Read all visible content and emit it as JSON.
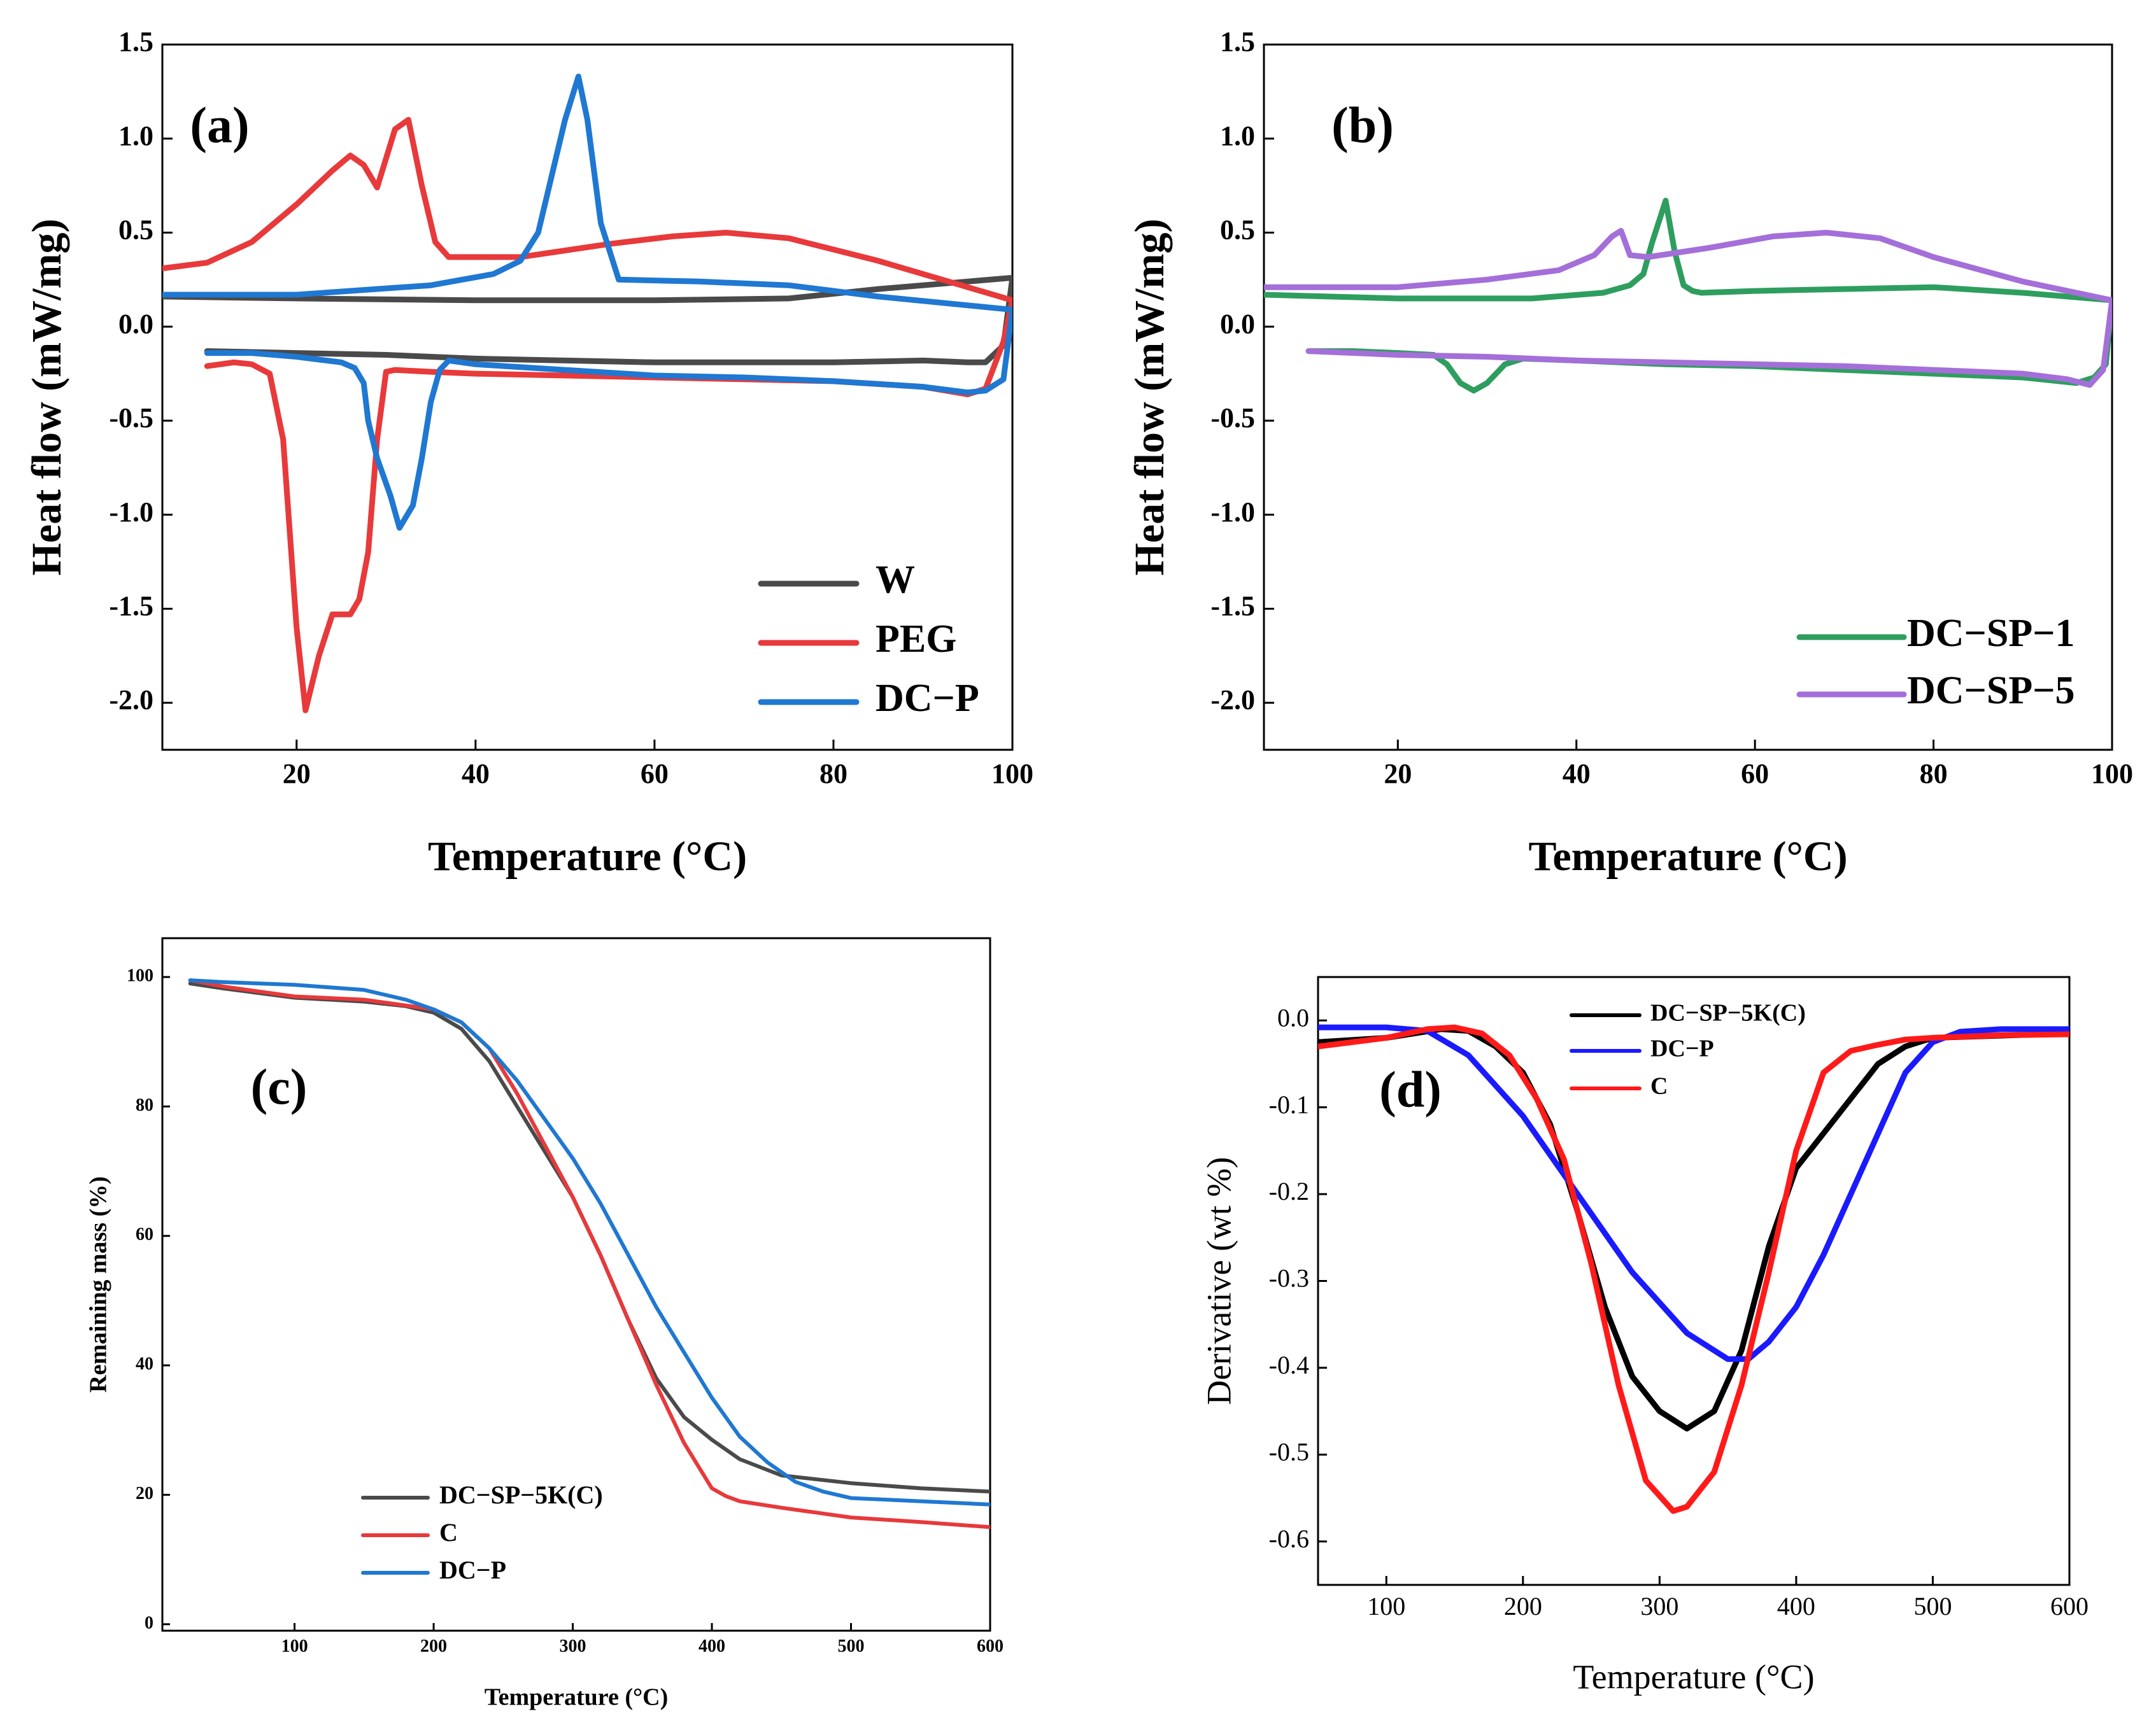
{
  "figure": {
    "panels_count": 4
  },
  "chart_data": [
    {
      "id": "a",
      "type": "line",
      "panel_label": "(a)",
      "xlabel": "Temperature (°C)",
      "ylabel": "Heat flow (mW/mg)",
      "xlim": [
        5,
        100
      ],
      "ylim": [
        -2.25,
        1.5
      ],
      "xticks": [
        20,
        40,
        60,
        80,
        100
      ],
      "yticks": [
        -2.0,
        -1.5,
        -1.0,
        -0.5,
        0.0,
        0.5,
        1.0,
        1.5
      ],
      "ytick_labels": [
        "-2.0",
        "-1.5",
        "-1.0",
        "-0.5",
        "0.0",
        "0.5",
        "1.0",
        "1.5"
      ],
      "legend": [
        "W",
        "PEG",
        "DC−P"
      ],
      "legend_position": "bottom-right",
      "series": [
        {
          "name": "W",
          "color": "#4a4a4a",
          "segments": [
            {
              "x": [
                5,
                20,
                40,
                60,
                75,
                85,
                100
              ],
              "y": [
                0.16,
                0.15,
                0.14,
                0.14,
                0.15,
                0.2,
                0.26
              ]
            },
            {
              "x": [
                100,
                99,
                97,
                95,
                90,
                80,
                70,
                60,
                50,
                40,
                30,
                20,
                10
              ],
              "y": [
                0.26,
                -0.1,
                -0.19,
                -0.19,
                -0.18,
                -0.19,
                -0.19,
                -0.19,
                -0.18,
                -0.17,
                -0.15,
                -0.14,
                -0.13
              ]
            }
          ]
        },
        {
          "name": "PEG",
          "color": "#e8393b",
          "segments": [
            {
              "x": [
                5,
                10,
                15,
                20,
                24,
                26,
                27.5,
                29,
                31,
                32.5,
                34,
                35.5,
                37,
                40,
                45,
                55,
                62,
                68,
                75,
                85,
                100
              ],
              "y": [
                0.31,
                0.34,
                0.45,
                0.65,
                0.83,
                0.91,
                0.86,
                0.74,
                1.05,
                1.1,
                0.75,
                0.45,
                0.37,
                0.37,
                0.37,
                0.44,
                0.48,
                0.5,
                0.47,
                0.35,
                0.14
              ]
            },
            {
              "x": [
                100,
                99,
                97,
                95,
                90,
                80,
                70,
                60,
                50,
                40,
                35,
                31,
                30,
                29,
                28,
                27,
                26,
                24,
                22.5,
                21,
                20,
                18.5,
                17,
                15,
                13,
                10
              ],
              "y": [
                0.14,
                -0.08,
                -0.33,
                -0.36,
                -0.32,
                -0.29,
                -0.28,
                -0.27,
                -0.26,
                -0.25,
                -0.24,
                -0.23,
                -0.24,
                -0.6,
                -1.2,
                -1.45,
                -1.53,
                -1.53,
                -1.75,
                -2.04,
                -1.6,
                -0.6,
                -0.25,
                -0.2,
                -0.19,
                -0.21
              ]
            }
          ]
        },
        {
          "name": "DC−P",
          "color": "#1f78d1",
          "segments": [
            {
              "x": [
                5,
                20,
                35,
                42,
                45,
                47,
                48.5,
                50,
                51.5,
                52.5,
                54,
                56,
                65,
                75,
                85,
                100
              ],
              "y": [
                0.17,
                0.17,
                0.22,
                0.28,
                0.35,
                0.5,
                0.8,
                1.1,
                1.33,
                1.1,
                0.55,
                0.25,
                0.24,
                0.22,
                0.16,
                0.09
              ]
            },
            {
              "x": [
                100,
                99,
                97,
                95,
                90,
                80,
                70,
                60,
                50,
                40,
                37,
                36,
                35,
                34,
                33,
                31.5,
                30.5,
                29,
                28,
                27.5,
                26.5,
                25,
                20,
                15,
                10
              ],
              "y": [
                0.09,
                -0.28,
                -0.34,
                -0.35,
                -0.32,
                -0.29,
                -0.27,
                -0.26,
                -0.23,
                -0.2,
                -0.18,
                -0.23,
                -0.4,
                -0.7,
                -0.95,
                -1.07,
                -0.9,
                -0.7,
                -0.5,
                -0.3,
                -0.22,
                -0.19,
                -0.16,
                -0.14,
                -0.14
              ]
            }
          ]
        }
      ]
    },
    {
      "id": "b",
      "type": "line",
      "panel_label": "(b)",
      "xlabel": "Temperature (°C)",
      "ylabel": "Heat flow (mW/mg)",
      "xlim": [
        5,
        100
      ],
      "ylim": [
        -2.25,
        1.5
      ],
      "xticks": [
        20,
        40,
        60,
        80,
        100
      ],
      "yticks": [
        -2.0,
        -1.5,
        -1.0,
        -0.5,
        0.0,
        0.5,
        1.0,
        1.5
      ],
      "ytick_labels": [
        "-2.0",
        "-1.5",
        "-1.0",
        "-0.5",
        "0.0",
        "0.5",
        "1.0",
        "1.5"
      ],
      "legend": [
        "DC−SP−1",
        "DC−SP−5"
      ],
      "legend_position": "bottom-right",
      "series": [
        {
          "name": "DC−SP−1",
          "color": "#2e9e5f",
          "segments": [
            {
              "x": [
                5,
                20,
                35,
                43,
                46,
                47.5,
                48.5,
                50,
                51,
                52,
                53,
                54,
                60,
                70,
                80,
                90,
                100
              ],
              "y": [
                0.17,
                0.15,
                0.15,
                0.18,
                0.22,
                0.28,
                0.45,
                0.67,
                0.4,
                0.22,
                0.19,
                0.18,
                0.19,
                0.2,
                0.21,
                0.18,
                0.14
              ]
            },
            {
              "x": [
                100,
                99.3,
                98,
                96,
                90,
                80,
                70,
                60,
                50,
                40,
                34,
                32,
                30,
                28.5,
                27,
                25.5,
                24,
                20,
                15,
                10
              ],
              "y": [
                0.14,
                -0.2,
                -0.27,
                -0.3,
                -0.27,
                -0.25,
                -0.23,
                -0.21,
                -0.2,
                -0.18,
                -0.17,
                -0.2,
                -0.3,
                -0.34,
                -0.3,
                -0.2,
                -0.15,
                -0.14,
                -0.13,
                -0.13
              ]
            }
          ]
        },
        {
          "name": "DC−SP−5",
          "color": "#a46fd9",
          "segments": [
            {
              "x": [
                5,
                20,
                30,
                38,
                42,
                44,
                45,
                46,
                48,
                55,
                62,
                68,
                74,
                80,
                90,
                100
              ],
              "y": [
                0.21,
                0.21,
                0.25,
                0.3,
                0.38,
                0.48,
                0.51,
                0.38,
                0.37,
                0.42,
                0.48,
                0.5,
                0.47,
                0.37,
                0.24,
                0.14
              ]
            },
            {
              "x": [
                100,
                99,
                97.5,
                95,
                90,
                80,
                70,
                60,
                50,
                40,
                30,
                20,
                10
              ],
              "y": [
                0.14,
                -0.23,
                -0.31,
                -0.28,
                -0.25,
                -0.23,
                -0.21,
                -0.2,
                -0.19,
                -0.18,
                -0.16,
                -0.15,
                -0.13
              ]
            }
          ]
        }
      ]
    },
    {
      "id": "c",
      "type": "line",
      "panel_label": "(c)",
      "xlabel": "Temperature (°C)",
      "ylabel": "Remaining mass (%)",
      "xlim": [
        5,
        600
      ],
      "ylim": [
        -1,
        106
      ],
      "xticks": [
        100,
        200,
        300,
        400,
        500,
        600
      ],
      "yticks": [
        0,
        20,
        40,
        60,
        80,
        100
      ],
      "ytick_labels": [
        "0",
        "20",
        "40",
        "60",
        "80",
        "100"
      ],
      "legend": [
        "DC−SP−5K(C)",
        "C",
        "DC−P"
      ],
      "legend_position": "bottom-left",
      "series": [
        {
          "name": "DC−SP−5K(C)",
          "color": "#4a4a4a",
          "x": [
            25,
            50,
            100,
            150,
            180,
            200,
            220,
            240,
            260,
            280,
            300,
            320,
            340,
            360,
            380,
            400,
            420,
            450,
            500,
            550,
            600
          ],
          "y": [
            99,
            98.2,
            96.8,
            96.2,
            95.5,
            94.5,
            92,
            87,
            80,
            73,
            66,
            57,
            47,
            38,
            32,
            28.5,
            25.5,
            23,
            21.8,
            21,
            20.5
          ]
        },
        {
          "name": "C",
          "color": "#e8393b",
          "x": [
            25,
            50,
            100,
            150,
            200,
            220,
            240,
            260,
            280,
            300,
            320,
            340,
            360,
            380,
            400,
            410,
            420,
            450,
            500,
            550,
            600
          ],
          "y": [
            99.5,
            98.5,
            97,
            96.5,
            95,
            93,
            89,
            82,
            74,
            66,
            57,
            47,
            37,
            28,
            21,
            19.8,
            19,
            18,
            16.5,
            15.8,
            15
          ]
        },
        {
          "name": "DC−P",
          "color": "#1f78d1",
          "x": [
            25,
            50,
            100,
            150,
            180,
            200,
            220,
            240,
            260,
            280,
            300,
            320,
            340,
            360,
            380,
            400,
            420,
            440,
            460,
            480,
            500,
            550,
            600
          ],
          "y": [
            99.5,
            99.2,
            98.8,
            98,
            96.5,
            95,
            93,
            89,
            84,
            78,
            72,
            65,
            57,
            49,
            42,
            35,
            29,
            25,
            22,
            20.5,
            19.5,
            19,
            18.5
          ]
        }
      ]
    },
    {
      "id": "d",
      "type": "line",
      "panel_label": "(d)",
      "xlabel": "Temperature (°C)",
      "ylabel": "Derivative (wt %)",
      "xlim": [
        50,
        600
      ],
      "ylim": [
        -0.65,
        0.05
      ],
      "xticks": [
        100,
        200,
        300,
        400,
        500,
        600
      ],
      "yticks": [
        0.0,
        -0.1,
        -0.2,
        -0.3,
        -0.4,
        -0.5,
        -0.6
      ],
      "ytick_labels": [
        "0.0",
        "-0.1",
        "-0.2",
        "-0.3",
        "-0.4",
        "-0.5",
        "-0.6"
      ],
      "legend": [
        "DC−SP−5K(C)",
        "DC−P",
        "C"
      ],
      "legend_position": "top-center",
      "series": [
        {
          "name": "DC−SP−5K(C)",
          "color": "#000000",
          "x": [
            50,
            100,
            140,
            160,
            180,
            200,
            220,
            240,
            260,
            280,
            300,
            320,
            340,
            360,
            380,
            400,
            420,
            440,
            460,
            480,
            500,
            600
          ],
          "y": [
            -0.025,
            -0.02,
            -0.01,
            -0.012,
            -0.03,
            -0.06,
            -0.12,
            -0.22,
            -0.33,
            -0.41,
            -0.45,
            -0.47,
            -0.45,
            -0.38,
            -0.26,
            -0.17,
            -0.13,
            -0.09,
            -0.05,
            -0.03,
            -0.02,
            -0.015
          ]
        },
        {
          "name": "DC−P",
          "color": "#1a1aff",
          "x": [
            50,
            100,
            130,
            160,
            200,
            240,
            280,
            320,
            350,
            365,
            380,
            400,
            420,
            440,
            460,
            480,
            500,
            520,
            550,
            600
          ],
          "y": [
            -0.008,
            -0.008,
            -0.012,
            -0.04,
            -0.11,
            -0.2,
            -0.29,
            -0.36,
            -0.39,
            -0.39,
            -0.37,
            -0.33,
            -0.27,
            -0.2,
            -0.13,
            -0.06,
            -0.025,
            -0.013,
            -0.01,
            -0.01
          ]
        },
        {
          "name": "C",
          "color": "#ff1a1a",
          "x": [
            50,
            100,
            130,
            150,
            170,
            190,
            210,
            230,
            250,
            270,
            290,
            310,
            320,
            340,
            360,
            380,
            400,
            420,
            440,
            460,
            480,
            500,
            550,
            600
          ],
          "y": [
            -0.03,
            -0.02,
            -0.01,
            -0.008,
            -0.015,
            -0.04,
            -0.09,
            -0.16,
            -0.28,
            -0.42,
            -0.53,
            -0.565,
            -0.56,
            -0.52,
            -0.42,
            -0.29,
            -0.15,
            -0.06,
            -0.035,
            -0.028,
            -0.022,
            -0.02,
            -0.017,
            -0.016
          ]
        }
      ]
    }
  ]
}
